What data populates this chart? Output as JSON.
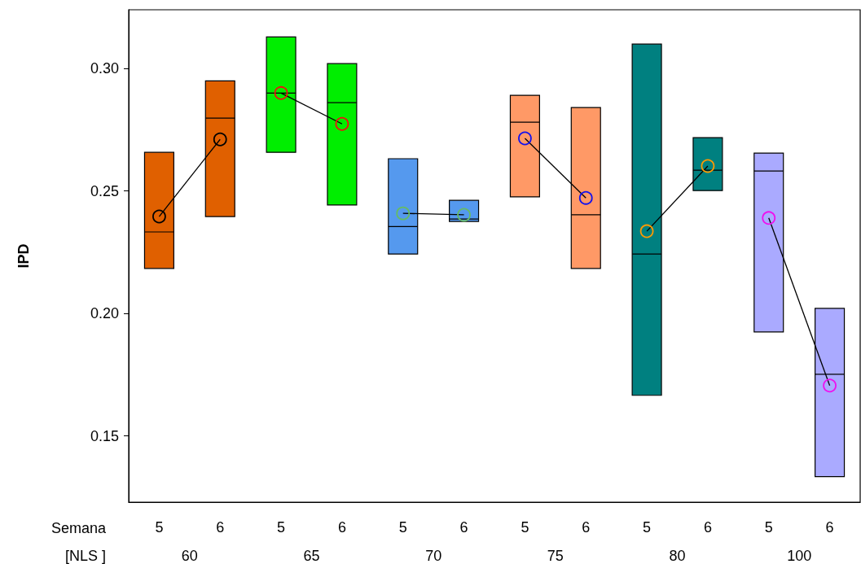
{
  "chart_data": {
    "type": "box",
    "ylabel": "IPD",
    "xlabel": "Semana",
    "annotations": [
      "[NLS ]",
      "60",
      "65",
      "70",
      "75",
      "80",
      "100"
    ],
    "categories": [
      "5",
      "6",
      "5",
      "6",
      "5",
      "6",
      "5",
      "6",
      "5",
      "6",
      "5",
      "6"
    ],
    "colors": [
      "#e06000",
      "#e06000",
      "#00ee00",
      "#00ee00",
      "#5599ee",
      "#5599ee",
      "#ff9966",
      "#ff9966",
      "#008080",
      "#008080",
      "#aaaaff",
      "#aaaaff"
    ],
    "boxes": [
      {
        "low": 0.2184,
        "q1": 0.2184,
        "median": 0.2333,
        "q3": 0.2658,
        "high": 0.2658
      },
      {
        "low": 0.2396,
        "q1": 0.2396,
        "median": 0.2798,
        "q3": 0.295,
        "high": 0.295
      },
      {
        "low": 0.2658,
        "q1": 0.2658,
        "median": 0.29,
        "q3": 0.3129,
        "high": 0.3129
      },
      {
        "low": 0.2443,
        "q1": 0.2443,
        "median": 0.2861,
        "q3": 0.302,
        "high": 0.302
      },
      {
        "low": 0.2243,
        "q1": 0.2243,
        "median": 0.2355,
        "q3": 0.2632,
        "high": 0.2632
      },
      {
        "low": 0.2376,
        "q1": 0.2376,
        "median": 0.2386,
        "q3": 0.2462,
        "high": 0.2462
      },
      {
        "low": 0.2476,
        "q1": 0.2476,
        "median": 0.2781,
        "q3": 0.2891,
        "high": 0.2891
      },
      {
        "low": 0.2184,
        "q1": 0.2184,
        "median": 0.2403,
        "q3": 0.2841,
        "high": 0.2841
      },
      {
        "low": 0.1666,
        "q1": 0.1666,
        "median": 0.2243,
        "q3": 0.31,
        "high": 0.31
      },
      {
        "low": 0.2502,
        "q1": 0.2502,
        "median": 0.2585,
        "q3": 0.2718,
        "high": 0.2718
      },
      {
        "low": 0.1925,
        "q1": 0.1925,
        "median": 0.2582,
        "q3": 0.2655,
        "high": 0.2655
      },
      {
        "low": 0.1334,
        "q1": 0.1334,
        "median": 0.1752,
        "q3": 0.2021,
        "high": 0.2021
      }
    ],
    "series": [
      {
        "type": "line",
        "color": "#000000",
        "values": [
          0.2396,
          0.2711,
          null,
          null,
          null,
          null,
          null,
          null,
          null,
          null,
          null,
          null
        ]
      },
      {
        "type": "line",
        "color": "#ee1111",
        "values": [
          null,
          null,
          0.29,
          0.2774,
          null,
          null,
          null,
          null,
          null,
          null,
          null,
          null
        ]
      },
      {
        "type": "line",
        "color": "#66bb66",
        "values": [
          null,
          null,
          null,
          null,
          0.2409,
          0.2403,
          null,
          null,
          null,
          null,
          null,
          null
        ]
      },
      {
        "type": "line",
        "color": "#1111ee",
        "values": [
          null,
          null,
          null,
          null,
          null,
          null,
          0.2715,
          0.2472,
          null,
          null,
          null,
          null
        ]
      },
      {
        "type": "line",
        "color": "#ff9900",
        "values": [
          null,
          null,
          null,
          null,
          null,
          null,
          null,
          null,
          0.2336,
          0.2602,
          null,
          null
        ]
      },
      {
        "type": "line",
        "color": "#ee11ee",
        "values": [
          null,
          null,
          null,
          null,
          null,
          null,
          null,
          null,
          null,
          null,
          0.239,
          0.1706
        ]
      }
    ],
    "marker": "circle",
    "ylim": [
      0.123,
      0.324
    ],
    "yticks": [
      0.15,
      {
        "value": 0.2,
        "label": "0.20"
      },
      0.25,
      {
        "value": 0.3,
        "label": "0.30"
      }
    ]
  }
}
